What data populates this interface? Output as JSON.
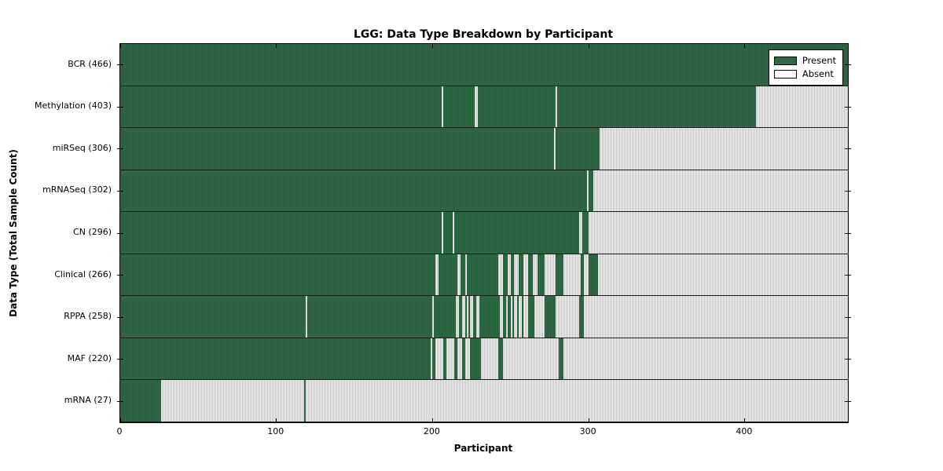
{
  "title": "LGG: Data Type Breakdown by Participant",
  "xlabel": "Participant",
  "ylabel": "Data Type (Total Sample Count)",
  "legend": {
    "position": "upper right",
    "present_label": "Present",
    "absent_label": "Absent"
  },
  "colors": {
    "present": "#2e6b45",
    "present_stripe": "#225135",
    "absent": "#f2f2f2",
    "absent_stripe": "#c6c6c6",
    "border": "#000000"
  },
  "chart_data": {
    "type": "heatmap",
    "grid": false,
    "x_max": 466,
    "x_ticks": [
      0,
      100,
      200,
      300,
      400
    ],
    "categories": [
      "BCR (466)",
      "Methylation (403)",
      "miRSeq (306)",
      "mRNASeq (302)",
      "CN (296)",
      "Clinical (266)",
      "RPPA (258)",
      "MAF (220)",
      "mRNA (27)"
    ],
    "rows": [
      {
        "name": "BCR",
        "label": "BCR (466)",
        "total": 466,
        "present_segments": [
          [
            0,
            466
          ]
        ]
      },
      {
        "name": "Methylation",
        "label": "Methylation (403)",
        "total": 403,
        "present_segments": [
          [
            0,
            206
          ],
          [
            207,
            227
          ],
          [
            229,
            279
          ],
          [
            280,
            407
          ]
        ]
      },
      {
        "name": "miRSeq",
        "label": "miRSeq (306)",
        "total": 306,
        "present_segments": [
          [
            0,
            278
          ],
          [
            279,
            307
          ]
        ]
      },
      {
        "name": "mRNASeq",
        "label": "mRNASeq (302)",
        "total": 302,
        "present_segments": [
          [
            0,
            299
          ],
          [
            300,
            303
          ]
        ]
      },
      {
        "name": "CN",
        "label": "CN (296)",
        "total": 296,
        "present_segments": [
          [
            0,
            206
          ],
          [
            207,
            213
          ],
          [
            214,
            294
          ],
          [
            296,
            300
          ]
        ]
      },
      {
        "name": "Clinical",
        "label": "Clinical (266)",
        "total": 266,
        "present_segments": [
          [
            0,
            202
          ],
          [
            204,
            216
          ],
          [
            218,
            221
          ],
          [
            222,
            242
          ],
          [
            245,
            248
          ],
          [
            250,
            252
          ],
          [
            255,
            258
          ],
          [
            261,
            264
          ],
          [
            267,
            272
          ],
          [
            279,
            284
          ],
          [
            295,
            297
          ],
          [
            300,
            306
          ]
        ]
      },
      {
        "name": "RPPA",
        "label": "RPPA (258)",
        "total": 258,
        "present_segments": [
          [
            0,
            119
          ],
          [
            120,
            200
          ],
          [
            201,
            215
          ],
          [
            217,
            219
          ],
          [
            221,
            222
          ],
          [
            223,
            224
          ],
          [
            226,
            228
          ],
          [
            230,
            243
          ],
          [
            245,
            247
          ],
          [
            248,
            250
          ],
          [
            251,
            252
          ],
          [
            254,
            255
          ],
          [
            257,
            258
          ],
          [
            261,
            265
          ],
          [
            272,
            279
          ],
          [
            294,
            297
          ]
        ]
      },
      {
        "name": "MAF",
        "label": "MAF (220)",
        "total": 220,
        "present_segments": [
          [
            0,
            199
          ],
          [
            200,
            202
          ],
          [
            207,
            209
          ],
          [
            214,
            216
          ],
          [
            219,
            221
          ],
          [
            224,
            231
          ],
          [
            242,
            245
          ],
          [
            281,
            284
          ]
        ]
      },
      {
        "name": "mRNA",
        "label": "mRNA (27)",
        "total": 27,
        "present_segments": [
          [
            0,
            26
          ],
          [
            118,
            119
          ]
        ]
      }
    ]
  }
}
